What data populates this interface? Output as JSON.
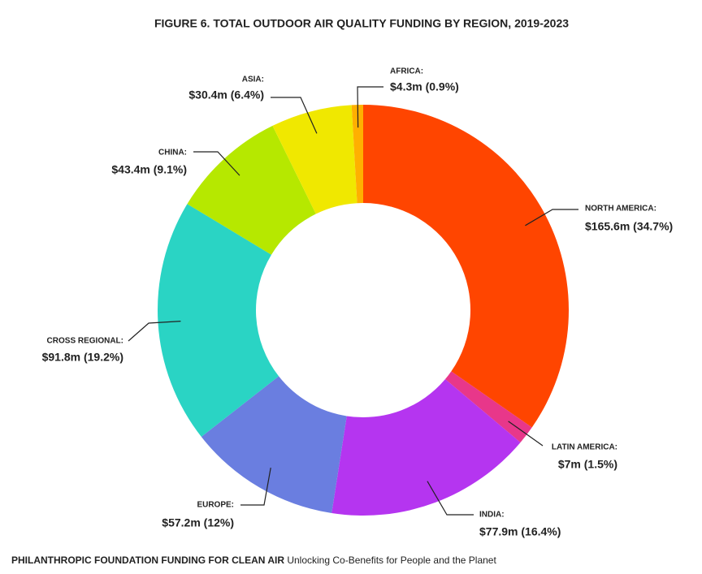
{
  "chart_data": {
    "type": "donut",
    "title": "FIGURE 6. TOTAL OUTDOOR AIR QUALITY FUNDING BY REGION, 2019-2023",
    "categories": [
      "NORTH AMERICA:",
      "LATIN AMERICA:",
      "INDIA:",
      "EUROPE:",
      "CROSS REGIONAL:",
      "CHINA:",
      "ASIA:",
      "AFRICA:"
    ],
    "values": [
      165.6,
      7,
      77.9,
      57.2,
      91.8,
      43.4,
      30.4,
      4.3
    ],
    "value_labels": [
      "$165.6m (34.7%)",
      "$7m (1.5%)",
      "$77.9m (16.4%)",
      "$57.2m (12%)",
      "$91.8m (19.2%)",
      "$43.4m (9.1%)",
      "$30.4m (6.4%)",
      "$4.3m (0.9%)"
    ],
    "colors": [
      "#ff4500",
      "#e8378a",
      "#b535f0",
      "#6a7ee0",
      "#2ad4c4",
      "#b6e800",
      "#f0e800",
      "#ffb000"
    ]
  },
  "footer": {
    "bold": "PHILANTHROPIC FOUNDATION FUNDING FOR CLEAN AIR",
    "text": "Unlocking Co-Benefits for People and the Planet"
  }
}
